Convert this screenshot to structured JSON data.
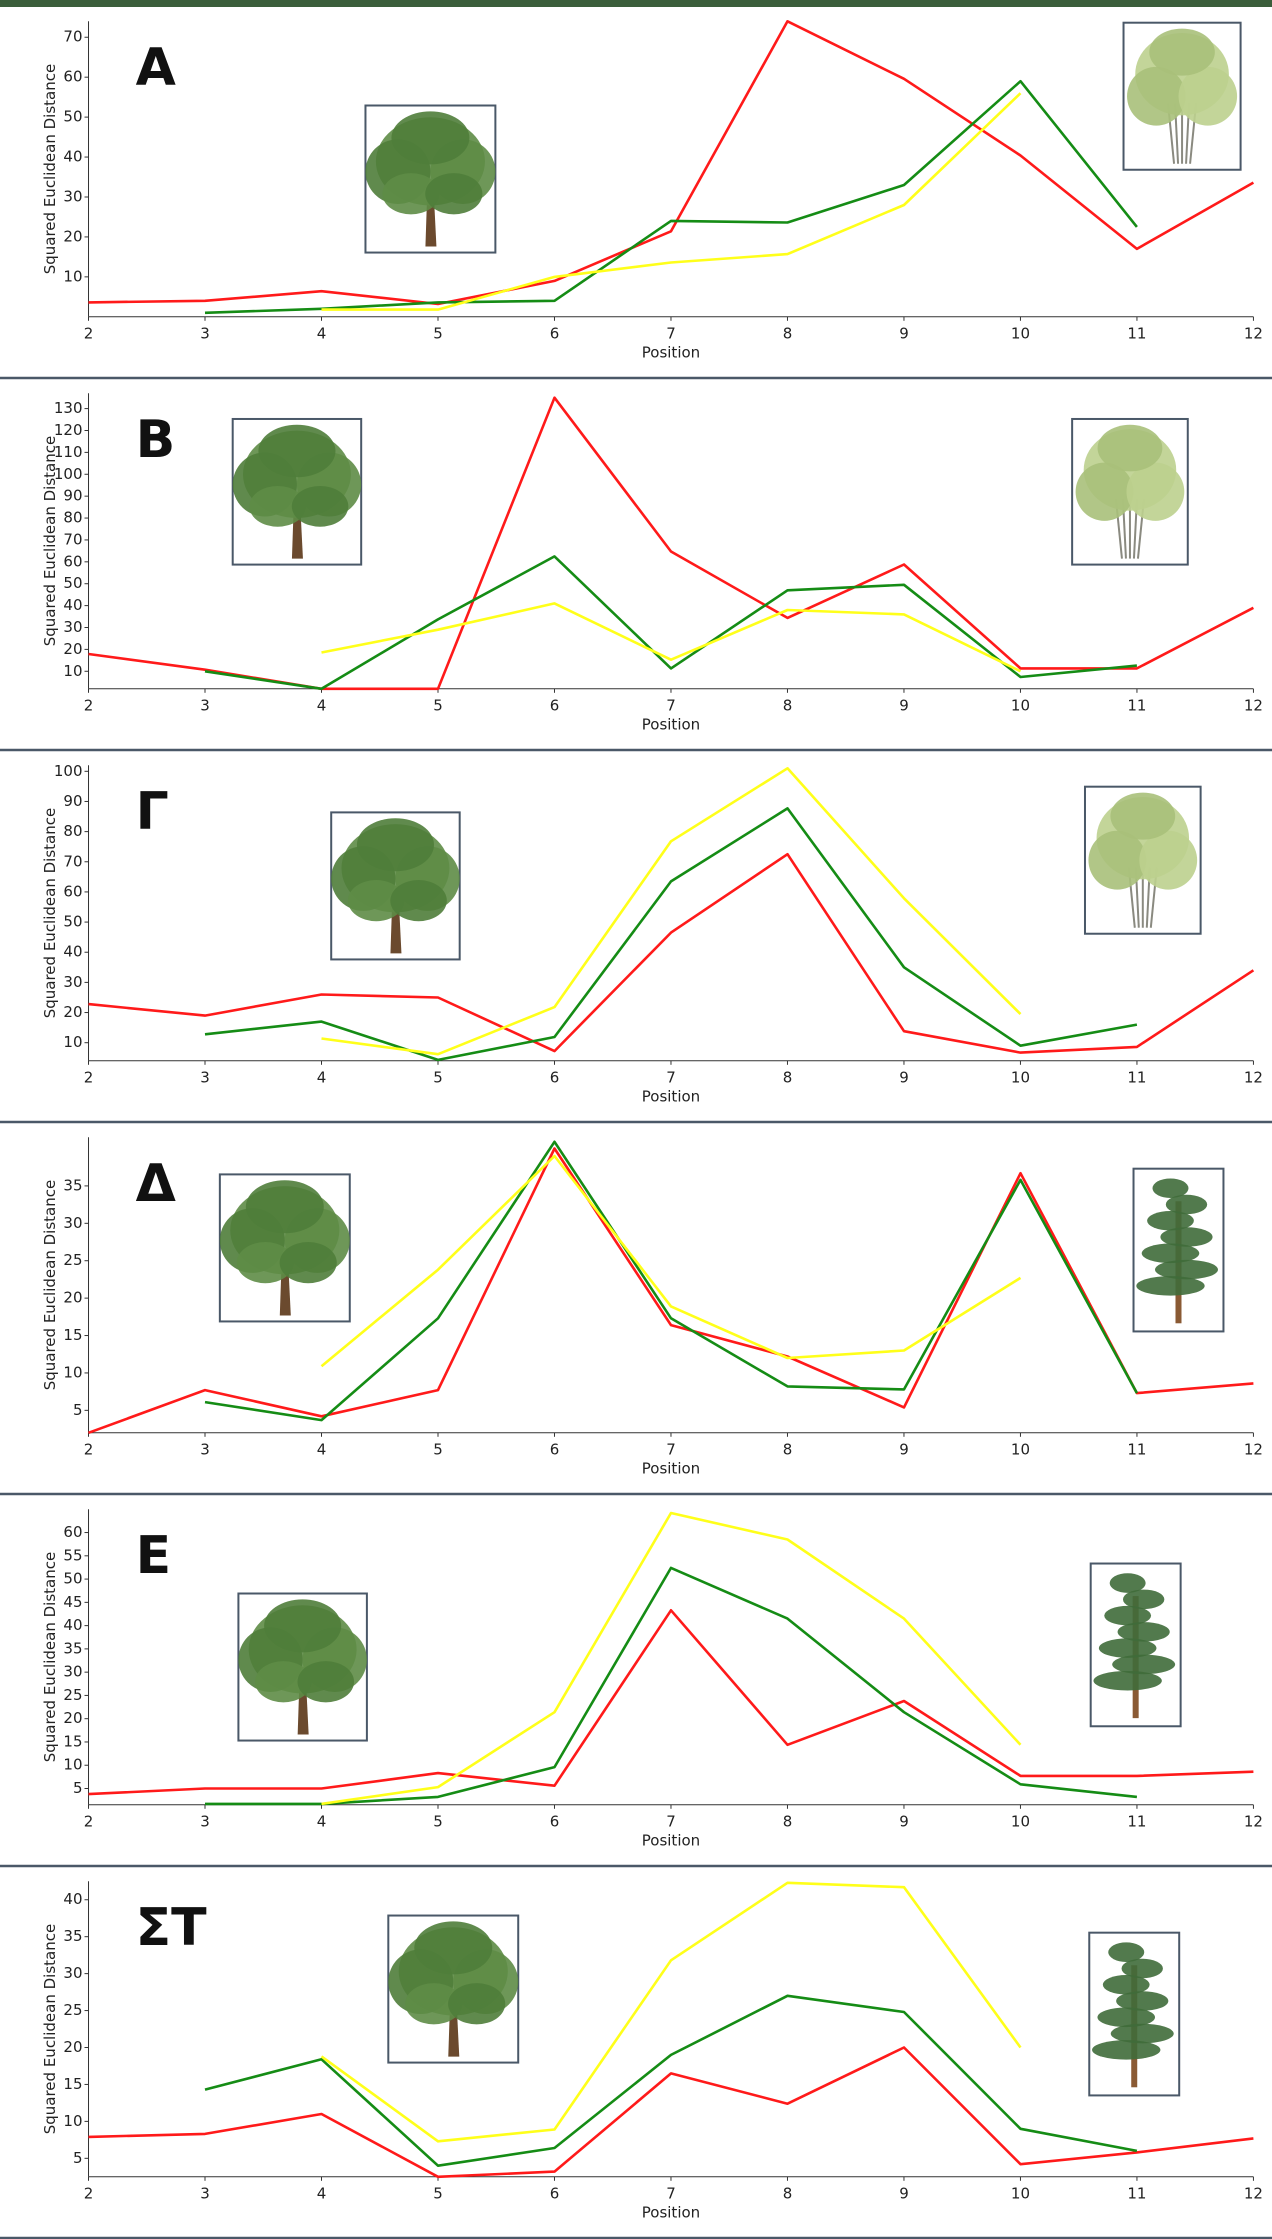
{
  "chart_data": [
    {
      "type": "line",
      "title": "Α",
      "x_label": "Position",
      "y_label": "Squared Euclidean Distance",
      "x": [
        2,
        3,
        4,
        5,
        6,
        7,
        8,
        9,
        10,
        11,
        12
      ],
      "xlim": [
        2,
        12
      ],
      "xticks": [
        2,
        3,
        4,
        5,
        6,
        7,
        8,
        9,
        10,
        11,
        12
      ],
      "ylim": [
        0,
        74
      ],
      "yticks": [
        10,
        20,
        30,
        40,
        50,
        60,
        70
      ],
      "series": [
        {
          "color": "#ff1a1a",
          "values": [
            3.6,
            4,
            6.4,
            3.2,
            9,
            21.4,
            74,
            59.6,
            40.4,
            17,
            33.6
          ]
        },
        {
          "color": "#158c15",
          "values": [
            null,
            1,
            2,
            3.6,
            4,
            24,
            23.6,
            33,
            59,
            22.5,
            null
          ]
        },
        {
          "color": "#ffff1a",
          "values": [
            null,
            null,
            1.8,
            1.8,
            10,
            13.6,
            15.7,
            28,
            56,
            null,
            null
          ]
        }
      ]
    },
    {
      "type": "line",
      "title": "Β",
      "x_label": "Position",
      "y_label": "Squared Euclidean Distance",
      "x": [
        2,
        3,
        4,
        5,
        6,
        7,
        8,
        9,
        10,
        11,
        12
      ],
      "xlim": [
        2,
        12
      ],
      "xticks": [
        2,
        3,
        4,
        5,
        6,
        7,
        8,
        9,
        10,
        11,
        12
      ],
      "ylim": [
        2,
        137
      ],
      "yticks": [
        10,
        20,
        30,
        40,
        50,
        60,
        70,
        80,
        90,
        100,
        110,
        120,
        130
      ],
      "series": [
        {
          "color": "#ff1a1a",
          "values": [
            17.9,
            10.7,
            2,
            2,
            135,
            64.7,
            34.4,
            58.8,
            11.3,
            11.3,
            39
          ]
        },
        {
          "color": "#158c15",
          "values": [
            null,
            10,
            2,
            33.7,
            62.5,
            11.3,
            47,
            49.5,
            7.4,
            12.6,
            null
          ]
        },
        {
          "color": "#ffff1a",
          "values": [
            null,
            null,
            18.6,
            29,
            41,
            15.3,
            38,
            36,
            10,
            null,
            null
          ]
        }
      ]
    },
    {
      "type": "line",
      "title": "Γ",
      "x_label": "Position",
      "y_label": "Squared Euclidean Distance",
      "x": [
        2,
        3,
        4,
        5,
        6,
        7,
        8,
        9,
        10,
        11,
        12
      ],
      "xlim": [
        2,
        12
      ],
      "xticks": [
        2,
        3,
        4,
        5,
        6,
        7,
        8,
        9,
        10,
        11,
        12
      ],
      "ylim": [
        4,
        102
      ],
      "yticks": [
        10,
        20,
        30,
        40,
        50,
        60,
        70,
        80,
        90,
        100
      ],
      "series": [
        {
          "color": "#ff1a1a",
          "values": [
            22.8,
            19,
            26,
            25,
            7.2,
            46.5,
            72.5,
            13.8,
            6.7,
            8.6,
            34
          ]
        },
        {
          "color": "#158c15",
          "values": [
            null,
            12.8,
            17,
            4.3,
            11.9,
            63.5,
            87.7,
            35,
            9,
            16,
            null
          ]
        },
        {
          "color": "#ffff1a",
          "values": [
            null,
            null,
            11.4,
            6.2,
            21.8,
            76.8,
            101,
            57.9,
            19.5,
            null,
            null
          ]
        }
      ]
    },
    {
      "type": "line",
      "title": "Δ",
      "x_label": "Position",
      "y_label": "Squared Euclidean Distance",
      "x": [
        2,
        3,
        4,
        5,
        6,
        7,
        8,
        9,
        10,
        11,
        12
      ],
      "xlim": [
        2,
        12
      ],
      "xticks": [
        2,
        3,
        4,
        5,
        6,
        7,
        8,
        9,
        10,
        11,
        12
      ],
      "ylim": [
        2,
        41.5
      ],
      "yticks": [
        5,
        10,
        15,
        20,
        25,
        30,
        35
      ],
      "series": [
        {
          "color": "#ff1a1a",
          "values": [
            2,
            7.7,
            4.2,
            7.7,
            40,
            16.4,
            12.2,
            5.4,
            36.7,
            7.3,
            8.6
          ]
        },
        {
          "color": "#158c15",
          "values": [
            null,
            6.1,
            3.7,
            17.3,
            40.9,
            17.3,
            8.2,
            7.8,
            35.8,
            7.3,
            null
          ]
        },
        {
          "color": "#ffff1a",
          "values": [
            null,
            null,
            10.9,
            23.8,
            39,
            18.9,
            12,
            13,
            22.7,
            null,
            null
          ]
        }
      ]
    },
    {
      "type": "line",
      "title": "Ε",
      "x_label": "Position",
      "y_label": "Squared Euclidean Distance",
      "x": [
        2,
        3,
        4,
        5,
        6,
        7,
        8,
        9,
        10,
        11,
        12
      ],
      "xlim": [
        2,
        12
      ],
      "xticks": [
        2,
        3,
        4,
        5,
        6,
        7,
        8,
        9,
        10,
        11,
        12
      ],
      "ylim": [
        1.5,
        65
      ],
      "yticks": [
        5,
        10,
        15,
        20,
        25,
        30,
        35,
        40,
        45,
        50,
        55,
        60
      ],
      "series": [
        {
          "color": "#ff1a1a",
          "values": [
            3.8,
            5,
            5,
            8.3,
            5.6,
            43.3,
            14.4,
            23.8,
            7.7,
            7.7,
            8.6
          ]
        },
        {
          "color": "#158c15",
          "values": [
            null,
            1.7,
            1.7,
            3.2,
            9.6,
            52.4,
            41.5,
            21.4,
            5.9,
            3.2,
            null
          ]
        },
        {
          "color": "#ffff1a",
          "values": [
            null,
            null,
            1.7,
            5.3,
            21.4,
            64.2,
            58.5,
            41.5,
            14.4,
            null,
            null
          ]
        }
      ]
    },
    {
      "type": "line",
      "title": "ΣΤ",
      "x_label": "Position",
      "y_label": "Squared Euclidean Distance",
      "x": [
        2,
        3,
        4,
        5,
        6,
        7,
        8,
        9,
        10,
        11,
        12
      ],
      "xlim": [
        2,
        12
      ],
      "xticks": [
        2,
        3,
        4,
        5,
        6,
        7,
        8,
        9,
        10,
        11,
        12
      ],
      "ylim": [
        2.5,
        42.5
      ],
      "yticks": [
        5,
        10,
        15,
        20,
        25,
        30,
        35,
        40
      ],
      "series": [
        {
          "color": "#ff1a1a",
          "values": [
            7.9,
            8.3,
            11,
            2.5,
            3.2,
            16.5,
            12.4,
            20,
            4.2,
            5.8,
            7.7
          ]
        },
        {
          "color": "#158c15",
          "values": [
            null,
            14.3,
            18.4,
            4,
            6.4,
            19,
            27,
            24.8,
            9,
            6,
            null
          ]
        },
        {
          "color": "#ffff1a",
          "values": [
            null,
            null,
            18.8,
            7.3,
            8.9,
            31.8,
            42.3,
            41.7,
            20,
            null,
            null
          ]
        }
      ]
    }
  ]
}
